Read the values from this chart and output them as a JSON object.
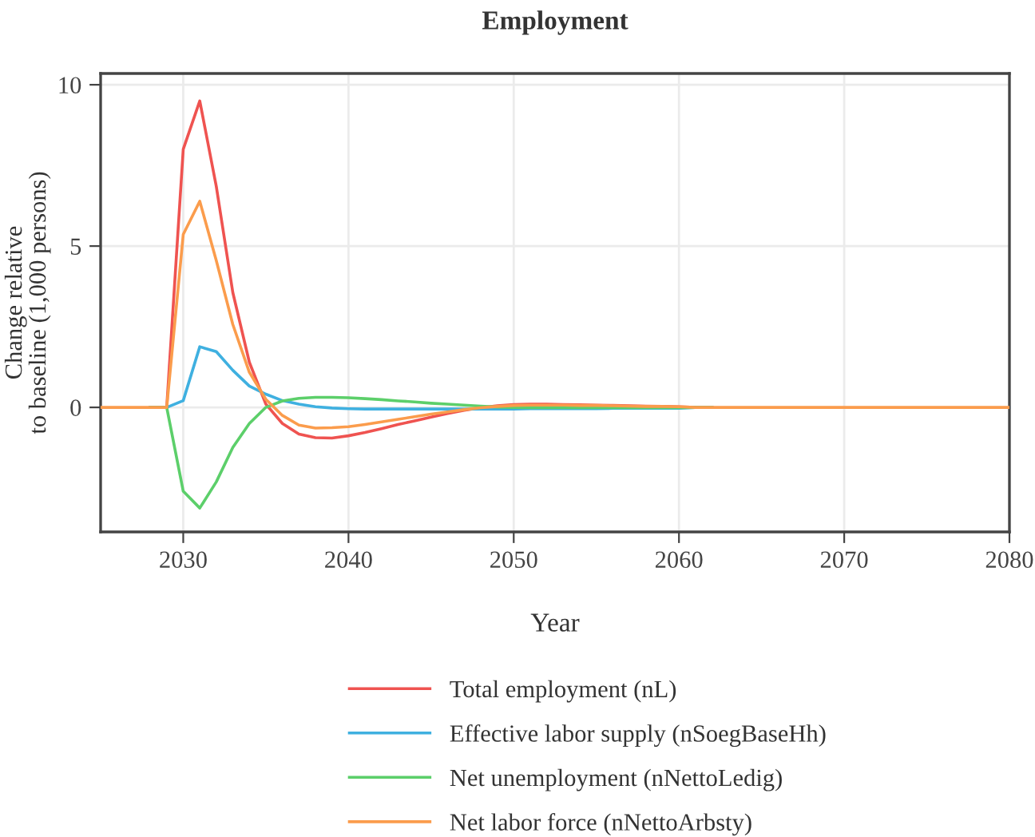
{
  "chart_data": {
    "type": "line",
    "title": "Employment",
    "xlabel": "Year",
    "ylabel": "Change relative\nto baseline (1,000 persons)",
    "x": [
      2025,
      2026,
      2027,
      2028,
      2029,
      2030,
      2031,
      2032,
      2033,
      2034,
      2035,
      2036,
      2037,
      2038,
      2039,
      2040,
      2041,
      2042,
      2043,
      2044,
      2045,
      2046,
      2047,
      2048,
      2049,
      2050,
      2051,
      2052,
      2053,
      2054,
      2055,
      2056,
      2057,
      2058,
      2059,
      2060,
      2061,
      2062,
      2063,
      2064,
      2065,
      2066,
      2067,
      2068,
      2069,
      2070,
      2071,
      2072,
      2073,
      2074,
      2075,
      2076,
      2077,
      2078,
      2079,
      2080
    ],
    "series": [
      {
        "name": "Total employment (nL)",
        "color": "#ef5350",
        "values": [
          null,
          null,
          null,
          0,
          0,
          8.0,
          9.5,
          6.85,
          3.56,
          1.4,
          0.1,
          -0.5,
          -0.83,
          -0.94,
          -0.95,
          -0.88,
          -0.78,
          -0.66,
          -0.53,
          -0.42,
          -0.3,
          -0.19,
          -0.09,
          -0.01,
          0.05,
          0.09,
          0.1,
          0.1,
          0.09,
          0.08,
          0.07,
          0.06,
          0.05,
          0.04,
          0.03,
          0.02,
          0,
          0,
          null,
          null,
          null,
          null,
          null,
          null,
          null,
          null,
          null,
          null,
          null,
          null,
          null,
          null,
          null,
          null,
          null,
          null
        ]
      },
      {
        "name": "Effective labor supply (nSoegBaseHh)",
        "color": "#3fb0e0",
        "values": [
          null,
          null,
          null,
          0,
          0,
          0.21,
          1.88,
          1.73,
          1.15,
          0.66,
          0.41,
          0.21,
          0.1,
          0.02,
          -0.02,
          -0.04,
          -0.05,
          -0.05,
          -0.05,
          -0.05,
          -0.05,
          -0.05,
          -0.05,
          -0.05,
          -0.05,
          -0.05,
          -0.04,
          -0.04,
          -0.04,
          -0.04,
          -0.04,
          -0.03,
          -0.03,
          -0.03,
          -0.03,
          -0.03,
          0,
          0,
          null,
          null,
          null,
          null,
          null,
          null,
          null,
          null,
          null,
          null,
          null,
          null,
          null,
          null,
          null,
          null,
          null,
          null
        ]
      },
      {
        "name": "Net unemployment (nNettoLedig)",
        "color": "#5ccf6a",
        "values": [
          null,
          null,
          null,
          0,
          0,
          -2.6,
          -3.12,
          -2.31,
          -1.24,
          -0.5,
          0,
          0.2,
          0.28,
          0.31,
          0.31,
          0.3,
          0.27,
          0.24,
          0.2,
          0.17,
          0.13,
          0.1,
          0.07,
          0.04,
          0.01,
          0,
          -0.01,
          -0.01,
          -0.01,
          -0.01,
          -0.01,
          -0.01,
          -0.01,
          -0.01,
          -0.01,
          -0.01,
          0,
          0,
          null,
          null,
          null,
          null,
          null,
          null,
          null,
          null,
          null,
          null,
          null,
          null,
          null,
          null,
          null,
          null,
          null,
          null
        ]
      },
      {
        "name": "Net labor force (nNettoArbsty)",
        "color": "#fb9c4c",
        "values": [
          0,
          0,
          0,
          0,
          0,
          5.36,
          6.39,
          4.55,
          2.57,
          1.09,
          0.25,
          -0.25,
          -0.55,
          -0.64,
          -0.63,
          -0.6,
          -0.53,
          -0.45,
          -0.37,
          -0.29,
          -0.21,
          -0.14,
          -0.07,
          -0.01,
          0.03,
          0.06,
          0.07,
          0.07,
          0.07,
          0.06,
          0.06,
          0.05,
          0.04,
          0.03,
          0.03,
          0.02,
          0,
          0,
          0,
          0,
          0,
          0,
          0,
          0,
          0,
          0,
          0,
          0,
          0,
          0,
          0,
          0,
          0,
          0,
          0,
          0
        ]
      }
    ],
    "xlim": [
      2025,
      2080
    ],
    "xticks": [
      2030,
      2040,
      2050,
      2060,
      2070,
      2080
    ],
    "ylim": [
      -3.86,
      10.35
    ],
    "yticks": [
      0,
      5,
      10
    ],
    "grid": true,
    "legend": "bottom",
    "marker": "none",
    "line_style": "solid"
  }
}
